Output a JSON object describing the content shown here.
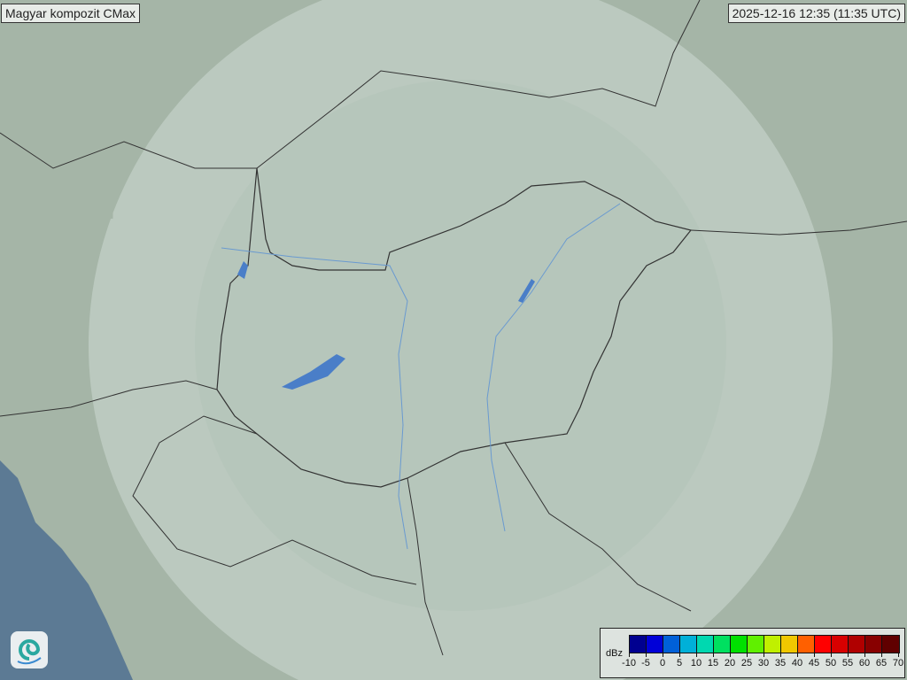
{
  "header": {
    "title": "Magyar kompozit  CMax",
    "timestamp": "2025-12-16 12:35 (11:35 UTC)"
  },
  "legend": {
    "unit": "dBz",
    "ticks": [
      "-10",
      "-5",
      "0",
      "5",
      "10",
      "15",
      "20",
      "25",
      "30",
      "35",
      "40",
      "45",
      "50",
      "55",
      "60",
      "65",
      "70"
    ],
    "colors": [
      "#000090",
      "#0000d8",
      "#0060d8",
      "#00b0d8",
      "#00d8b0",
      "#00e060",
      "#00e000",
      "#60f000",
      "#c0f000",
      "#f0c800",
      "#ff6000",
      "#ff0000",
      "#d80000",
      "#b00000",
      "#880000",
      "#600000"
    ]
  },
  "map": {
    "land": "#a5b5a7",
    "radar_coverage": "#bccbc1",
    "sea": "#5c7a94",
    "border": "#333333",
    "water": "#4a7ec8"
  },
  "logo": {
    "icon": "swirl-logo-icon"
  }
}
